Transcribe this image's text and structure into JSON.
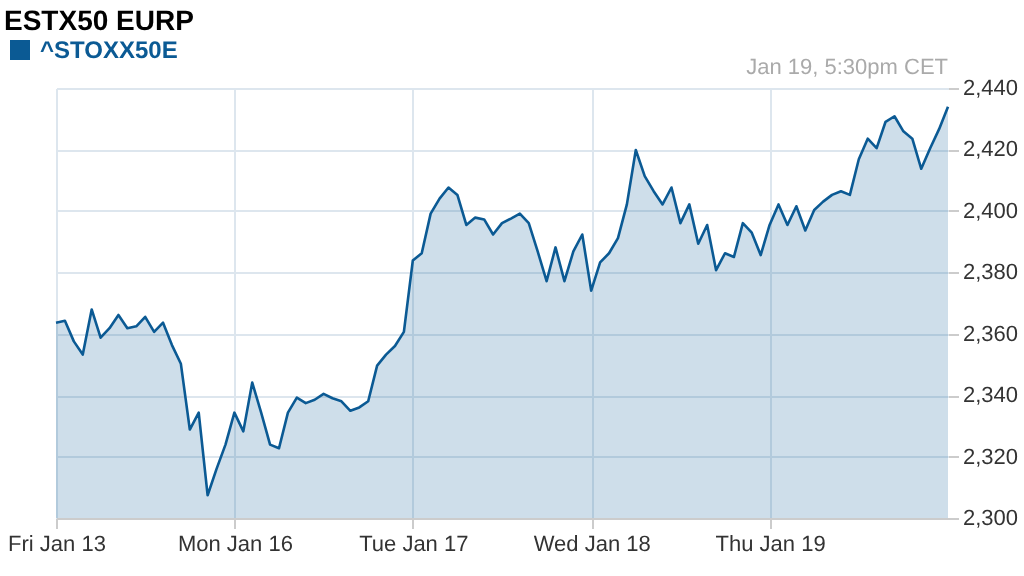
{
  "chart_data": {
    "type": "area",
    "title": "ESTX50 EURP",
    "annotations": [
      "Jan 19, 5:30pm CET"
    ],
    "legend": "top left",
    "grid": true,
    "marker": "none",
    "line_style": "solid",
    "categories": [
      "Fri Jan 13",
      null,
      null,
      null,
      null,
      null,
      null,
      null,
      null,
      null,
      null,
      null,
      null,
      null,
      null,
      null,
      null,
      null,
      null,
      null,
      "Mon Jan 16",
      null,
      null,
      null,
      null,
      null,
      null,
      null,
      null,
      null,
      null,
      null,
      null,
      null,
      null,
      null,
      null,
      null,
      null,
      null,
      "Tue Jan 17",
      null,
      null,
      null,
      null,
      null,
      null,
      null,
      null,
      null,
      null,
      null,
      null,
      null,
      null,
      null,
      null,
      null,
      null,
      null,
      "Wed Jan 18",
      null,
      null,
      null,
      null,
      null,
      null,
      null,
      null,
      null,
      null,
      null,
      null,
      null,
      null,
      null,
      null,
      null,
      null,
      null,
      "Thu Jan 19",
      null,
      null,
      null,
      null,
      null,
      null,
      null,
      null,
      null,
      null,
      null,
      null,
      null,
      null,
      null,
      null,
      null,
      null,
      null,
      null
    ],
    "ylim": [
      2300,
      2440
    ],
    "yticks": [
      {
        "value": 2300,
        "label": "2,300"
      },
      {
        "value": 2320,
        "label": "2,320"
      },
      {
        "value": 2340,
        "label": "2,340"
      },
      {
        "value": 2360,
        "label": "2,360"
      },
      {
        "value": 2380,
        "label": "2,380"
      },
      {
        "value": 2400,
        "label": "2,400"
      },
      {
        "value": 2420,
        "label": "2,420"
      },
      {
        "value": 2440,
        "label": "2,440"
      }
    ],
    "series": [
      {
        "name": "^STOXX50E",
        "color": "#0b5a94",
        "values": [
          2363.6,
          2364.2,
          2357.5,
          2353.2,
          2367.9,
          2358.7,
          2361.8,
          2366.1,
          2361.8,
          2362.4,
          2365.5,
          2360.6,
          2363.6,
          2356.3,
          2350.2,
          2328.8,
          2334.3,
          2307.4,
          2316.0,
          2323.9,
          2334.3,
          2328.2,
          2344.1,
          2334.3,
          2323.9,
          2322.7,
          2334.3,
          2339.2,
          2337.4,
          2338.5,
          2340.4,
          2339.0,
          2338.0,
          2334.9,
          2336.0,
          2338.0,
          2349.6,
          2353.2,
          2356.0,
          2360.6,
          2383.8,
          2386.2,
          2399.1,
          2404.0,
          2407.6,
          2405.2,
          2395.4,
          2397.8,
          2397.2,
          2392.3,
          2396.0,
          2397.5,
          2399.1,
          2396.0,
          2386.8,
          2377.1,
          2388.1,
          2377.1,
          2386.8,
          2392.3,
          2374.0,
          2383.2,
          2386.2,
          2391.1,
          2402.1,
          2419.8,
          2411.3,
          2406.4,
          2402.1,
          2407.6,
          2396.0,
          2402.1,
          2389.3,
          2395.4,
          2380.7,
          2386.2,
          2385.0,
          2396.0,
          2392.9,
          2385.6,
          2395.4,
          2402.1,
          2395.4,
          2401.5,
          2393.6,
          2400.3,
          2403.0,
          2405.2,
          2406.4,
          2405.2,
          2416.8,
          2423.5,
          2420.4,
          2429.0,
          2430.8,
          2425.9,
          2423.5,
          2413.7,
          2420.4,
          2426.6,
          2433.9
        ]
      }
    ]
  }
}
